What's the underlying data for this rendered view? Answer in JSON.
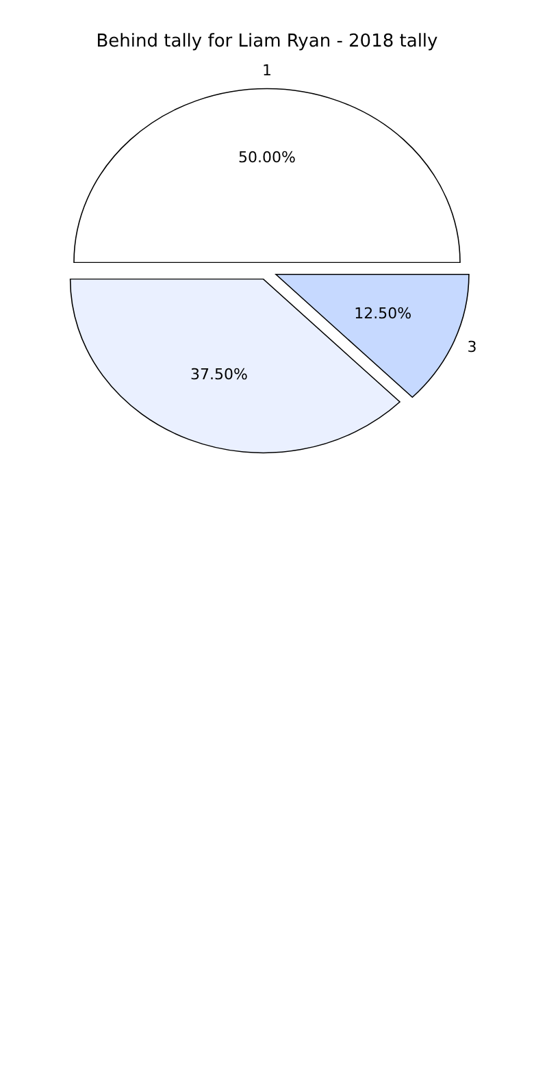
{
  "chart_data": {
    "type": "pie",
    "title": "Behind tally for Liam Ryan - 2018 tally",
    "categories": [
      "1",
      null,
      "3"
    ],
    "values": [
      50,
      37.5,
      12.5
    ],
    "colors": [
      "#ffffff",
      "#eaf0ff",
      "#c6d9ff"
    ],
    "value_labels": [
      "50.00%",
      "37.50%",
      "12.50%"
    ],
    "legend": false
  }
}
